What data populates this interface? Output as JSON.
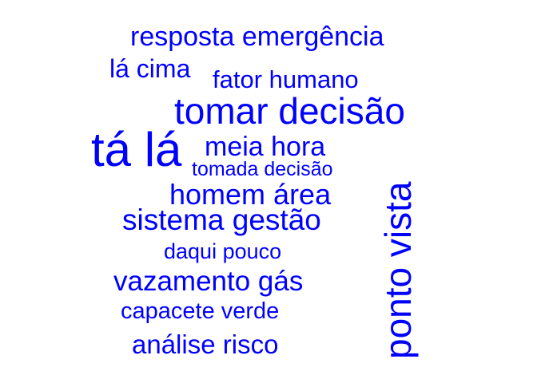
{
  "color": "#0000ff",
  "words": [
    {
      "text": "resposta emergência"
    },
    {
      "text": "lá cima"
    },
    {
      "text": "fator humano"
    },
    {
      "text": "tomar decisão"
    },
    {
      "text": "tá lá"
    },
    {
      "text": "meia hora"
    },
    {
      "text": "tomada decisão"
    },
    {
      "text": "homem área"
    },
    {
      "text": "sistema gestão"
    },
    {
      "text": "daqui pouco"
    },
    {
      "text": "vazamento gás"
    },
    {
      "text": "capacete verde"
    },
    {
      "text": "análise risco"
    },
    {
      "text": "ponto vista"
    }
  ]
}
